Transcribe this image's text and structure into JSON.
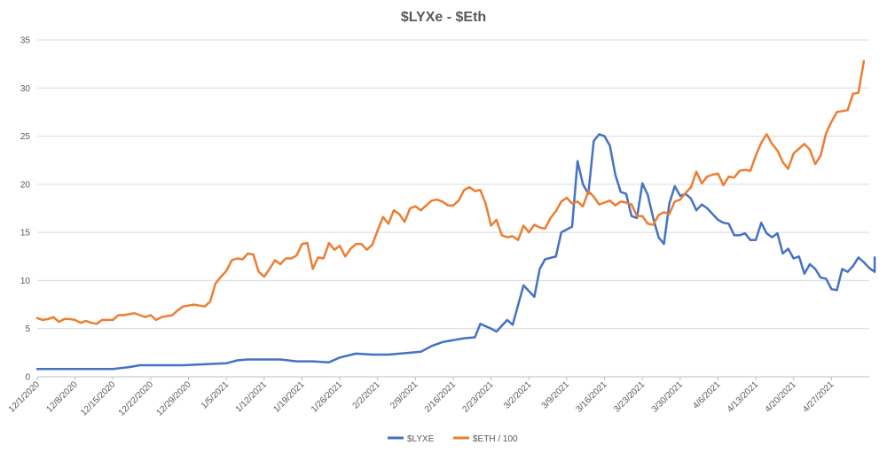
{
  "chart_data": {
    "type": "line",
    "title": "$LYXe - $Eth",
    "xlabel": "",
    "ylabel": "",
    "ylim": [
      0,
      35
    ],
    "y_ticks": [
      0,
      5,
      10,
      15,
      20,
      25,
      30,
      35
    ],
    "grid": true,
    "legend_position": "bottom",
    "x_tick_labels": [
      "12/1/2020",
      "12/8/2020",
      "12/15/2020",
      "12/22/2020",
      "12/29/2020",
      "1/5/2021",
      "1/12/2021",
      "1/19/2021",
      "1/26/2021",
      "2/2/2021",
      "2/9/2021",
      "2/16/2021",
      "2/23/2021",
      "3/2/2021",
      "3/9/2021",
      "3/16/2021",
      "3/23/2021",
      "3/30/2021",
      "4/6/2021",
      "4/13/2021",
      "4/20/2021",
      "4/27/2021"
    ],
    "x_start": "2020-12-01",
    "x_end": "2021-05-04",
    "series": [
      {
        "name": "$LYXE",
        "color": "#4472c4",
        "points": [
          [
            "2020-12-01",
            0.8
          ],
          [
            "2020-12-05",
            0.8
          ],
          [
            "2020-12-10",
            0.8
          ],
          [
            "2020-12-15",
            0.8
          ],
          [
            "2020-12-18",
            1.0
          ],
          [
            "2020-12-20",
            1.2
          ],
          [
            "2020-12-22",
            1.2
          ],
          [
            "2020-12-25",
            1.2
          ],
          [
            "2020-12-28",
            1.2
          ],
          [
            "2021-01-01",
            1.3
          ],
          [
            "2021-01-05",
            1.4
          ],
          [
            "2021-01-07",
            1.7
          ],
          [
            "2021-01-09",
            1.8
          ],
          [
            "2021-01-12",
            1.8
          ],
          [
            "2021-01-15",
            1.8
          ],
          [
            "2021-01-18",
            1.6
          ],
          [
            "2021-01-21",
            1.6
          ],
          [
            "2021-01-24",
            1.5
          ],
          [
            "2021-01-26",
            2.0
          ],
          [
            "2021-01-29",
            2.4
          ],
          [
            "2021-02-01",
            2.3
          ],
          [
            "2021-02-04",
            2.3
          ],
          [
            "2021-02-08",
            2.5
          ],
          [
            "2021-02-10",
            2.6
          ],
          [
            "2021-02-12",
            3.2
          ],
          [
            "2021-02-14",
            3.6
          ],
          [
            "2021-02-16",
            3.8
          ],
          [
            "2021-02-18",
            4.0
          ],
          [
            "2021-02-20",
            4.1
          ],
          [
            "2021-02-21",
            5.5
          ],
          [
            "2021-02-23",
            5.0
          ],
          [
            "2021-02-24",
            4.7
          ],
          [
            "2021-02-26",
            5.9
          ],
          [
            "2021-02-27",
            5.4
          ],
          [
            "2021-03-01",
            9.5
          ],
          [
            "2021-03-03",
            8.3
          ],
          [
            "2021-03-04",
            11.2
          ],
          [
            "2021-03-05",
            12.2
          ],
          [
            "2021-03-07",
            12.5
          ],
          [
            "2021-03-08",
            15.0
          ],
          [
            "2021-03-10",
            15.6
          ],
          [
            "2021-03-11",
            22.4
          ],
          [
            "2021-03-12",
            20.0
          ],
          [
            "2021-03-13",
            19.0
          ],
          [
            "2021-03-14",
            24.5
          ],
          [
            "2021-03-15",
            25.2
          ],
          [
            "2021-03-16",
            25.0
          ],
          [
            "2021-03-17",
            24.0
          ],
          [
            "2021-03-18",
            21.0
          ],
          [
            "2021-03-19",
            19.2
          ],
          [
            "2021-03-20",
            19.0
          ],
          [
            "2021-03-21",
            16.7
          ],
          [
            "2021-03-22",
            16.5
          ],
          [
            "2021-03-23",
            20.1
          ],
          [
            "2021-03-24",
            18.9
          ],
          [
            "2021-03-25",
            16.5
          ],
          [
            "2021-03-26",
            14.5
          ],
          [
            "2021-03-27",
            13.8
          ],
          [
            "2021-03-28",
            18.0
          ],
          [
            "2021-03-29",
            19.8
          ],
          [
            "2021-03-30",
            18.8
          ],
          [
            "2021-03-31",
            19.0
          ],
          [
            "2021-04-01",
            18.5
          ],
          [
            "2021-04-02",
            17.3
          ],
          [
            "2021-04-03",
            17.9
          ],
          [
            "2021-04-04",
            17.5
          ],
          [
            "2021-04-06",
            16.3
          ],
          [
            "2021-04-07",
            16.0
          ],
          [
            "2021-04-08",
            15.9
          ],
          [
            "2021-04-09",
            14.7
          ],
          [
            "2021-04-10",
            14.7
          ],
          [
            "2021-04-11",
            14.9
          ],
          [
            "2021-04-12",
            14.2
          ],
          [
            "2021-04-13",
            14.2
          ],
          [
            "2021-04-14",
            16.0
          ],
          [
            "2021-04-15",
            14.9
          ],
          [
            "2021-04-16",
            14.5
          ],
          [
            "2021-04-17",
            14.9
          ],
          [
            "2021-04-18",
            12.8
          ],
          [
            "2021-04-19",
            13.3
          ],
          [
            "2021-04-20",
            12.3
          ],
          [
            "2021-04-21",
            12.5
          ],
          [
            "2021-04-22",
            10.7
          ],
          [
            "2021-04-23",
            11.7
          ],
          [
            "2021-04-24",
            11.2
          ],
          [
            "2021-04-25",
            10.3
          ],
          [
            "2021-04-26",
            10.2
          ],
          [
            "2021-04-27",
            9.1
          ],
          [
            "2021-04-28",
            9.0
          ],
          [
            "2021-04-29",
            11.2
          ],
          [
            "2021-04-30",
            10.9
          ],
          [
            "2021-05-01",
            11.5
          ],
          [
            "2021-05-02",
            12.4
          ],
          [
            "2021-05-03",
            11.9
          ],
          [
            "2021-05-04",
            11.3
          ],
          [
            "2021-05-05",
            10.9
          ],
          [
            "2021-05-05",
            12.4
          ]
        ]
      },
      {
        "name": "$ETH / 100",
        "color": "#ed7d31",
        "points": [
          [
            "2020-12-01",
            6.1
          ],
          [
            "2020-12-02",
            5.9
          ],
          [
            "2020-12-03",
            6.0
          ],
          [
            "2020-12-04",
            6.2
          ],
          [
            "2020-12-05",
            5.7
          ],
          [
            "2020-12-06",
            6.0
          ],
          [
            "2020-12-07",
            6.0
          ],
          [
            "2020-12-08",
            5.9
          ],
          [
            "2020-12-09",
            5.6
          ],
          [
            "2020-12-10",
            5.8
          ],
          [
            "2020-12-11",
            5.6
          ],
          [
            "2020-12-12",
            5.5
          ],
          [
            "2020-12-13",
            5.9
          ],
          [
            "2020-12-14",
            5.9
          ],
          [
            "2020-12-15",
            5.9
          ],
          [
            "2020-12-16",
            6.4
          ],
          [
            "2020-12-17",
            6.4
          ],
          [
            "2020-12-18",
            6.5
          ],
          [
            "2020-12-19",
            6.6
          ],
          [
            "2020-12-20",
            6.4
          ],
          [
            "2020-12-21",
            6.2
          ],
          [
            "2020-12-22",
            6.4
          ],
          [
            "2020-12-23",
            5.9
          ],
          [
            "2020-12-24",
            6.2
          ],
          [
            "2020-12-25",
            6.3
          ],
          [
            "2020-12-26",
            6.4
          ],
          [
            "2020-12-27",
            6.9
          ],
          [
            "2020-12-28",
            7.3
          ],
          [
            "2020-12-29",
            7.4
          ],
          [
            "2020-12-30",
            7.5
          ],
          [
            "2020-12-31",
            7.4
          ],
          [
            "2021-01-01",
            7.3
          ],
          [
            "2021-01-02",
            7.8
          ],
          [
            "2021-01-03",
            9.7
          ],
          [
            "2021-01-04",
            10.4
          ],
          [
            "2021-01-05",
            11.0
          ],
          [
            "2021-01-06",
            12.1
          ],
          [
            "2021-01-07",
            12.3
          ],
          [
            "2021-01-08",
            12.2
          ],
          [
            "2021-01-09",
            12.8
          ],
          [
            "2021-01-10",
            12.7
          ],
          [
            "2021-01-11",
            10.9
          ],
          [
            "2021-01-12",
            10.4
          ],
          [
            "2021-01-13",
            11.2
          ],
          [
            "2021-01-14",
            12.1
          ],
          [
            "2021-01-15",
            11.7
          ],
          [
            "2021-01-16",
            12.3
          ],
          [
            "2021-01-17",
            12.3
          ],
          [
            "2021-01-18",
            12.6
          ],
          [
            "2021-01-19",
            13.8
          ],
          [
            "2021-01-20",
            13.9
          ],
          [
            "2021-01-21",
            11.2
          ],
          [
            "2021-01-22",
            12.4
          ],
          [
            "2021-01-23",
            12.3
          ],
          [
            "2021-01-24",
            13.9
          ],
          [
            "2021-01-25",
            13.2
          ],
          [
            "2021-01-26",
            13.6
          ],
          [
            "2021-01-27",
            12.5
          ],
          [
            "2021-01-28",
            13.3
          ],
          [
            "2021-01-29",
            13.8
          ],
          [
            "2021-01-30",
            13.8
          ],
          [
            "2021-01-31",
            13.2
          ],
          [
            "2021-02-01",
            13.7
          ],
          [
            "2021-02-02",
            15.2
          ],
          [
            "2021-02-03",
            16.6
          ],
          [
            "2021-02-04",
            15.9
          ],
          [
            "2021-02-05",
            17.3
          ],
          [
            "2021-02-06",
            16.9
          ],
          [
            "2021-02-07",
            16.1
          ],
          [
            "2021-02-08",
            17.5
          ],
          [
            "2021-02-09",
            17.7
          ],
          [
            "2021-02-10",
            17.3
          ],
          [
            "2021-02-11",
            17.8
          ],
          [
            "2021-02-12",
            18.3
          ],
          [
            "2021-02-13",
            18.4
          ],
          [
            "2021-02-14",
            18.2
          ],
          [
            "2021-02-15",
            17.8
          ],
          [
            "2021-02-16",
            17.8
          ],
          [
            "2021-02-17",
            18.3
          ],
          [
            "2021-02-18",
            19.4
          ],
          [
            "2021-02-19",
            19.7
          ],
          [
            "2021-02-20",
            19.3
          ],
          [
            "2021-02-21",
            19.4
          ],
          [
            "2021-02-22",
            18.0
          ],
          [
            "2021-02-23",
            15.7
          ],
          [
            "2021-02-24",
            16.3
          ],
          [
            "2021-02-25",
            14.7
          ],
          [
            "2021-02-26",
            14.5
          ],
          [
            "2021-02-27",
            14.6
          ],
          [
            "2021-02-28",
            14.2
          ],
          [
            "2021-03-01",
            15.7
          ],
          [
            "2021-03-02",
            15.0
          ],
          [
            "2021-03-03",
            15.8
          ],
          [
            "2021-03-04",
            15.5
          ],
          [
            "2021-03-05",
            15.4
          ],
          [
            "2021-03-06",
            16.5
          ],
          [
            "2021-03-07",
            17.2
          ],
          [
            "2021-03-08",
            18.2
          ],
          [
            "2021-03-09",
            18.6
          ],
          [
            "2021-03-10",
            18.0
          ],
          [
            "2021-03-11",
            18.2
          ],
          [
            "2021-03-12",
            17.7
          ],
          [
            "2021-03-13",
            19.3
          ],
          [
            "2021-03-14",
            18.7
          ],
          [
            "2021-03-15",
            17.9
          ],
          [
            "2021-03-16",
            18.1
          ],
          [
            "2021-03-17",
            18.3
          ],
          [
            "2021-03-18",
            17.8
          ],
          [
            "2021-03-19",
            18.2
          ],
          [
            "2021-03-20",
            18.1
          ],
          [
            "2021-03-21",
            17.9
          ],
          [
            "2021-03-22",
            16.7
          ],
          [
            "2021-03-23",
            16.7
          ],
          [
            "2021-03-24",
            15.9
          ],
          [
            "2021-03-25",
            15.8
          ],
          [
            "2021-03-26",
            16.8
          ],
          [
            "2021-03-27",
            17.1
          ],
          [
            "2021-03-28",
            16.9
          ],
          [
            "2021-03-29",
            18.2
          ],
          [
            "2021-03-30",
            18.4
          ],
          [
            "2021-03-31",
            19.1
          ],
          [
            "2021-04-01",
            19.7
          ],
          [
            "2021-04-02",
            21.3
          ],
          [
            "2021-04-03",
            20.1
          ],
          [
            "2021-04-04",
            20.8
          ],
          [
            "2021-04-05",
            21.0
          ],
          [
            "2021-04-06",
            21.1
          ],
          [
            "2021-04-07",
            19.9
          ],
          [
            "2021-04-08",
            20.8
          ],
          [
            "2021-04-09",
            20.7
          ],
          [
            "2021-04-10",
            21.4
          ],
          [
            "2021-04-11",
            21.5
          ],
          [
            "2021-04-12",
            21.4
          ],
          [
            "2021-04-13",
            23.0
          ],
          [
            "2021-04-14",
            24.3
          ],
          [
            "2021-04-15",
            25.2
          ],
          [
            "2021-04-16",
            24.2
          ],
          [
            "2021-04-17",
            23.5
          ],
          [
            "2021-04-18",
            22.3
          ],
          [
            "2021-04-19",
            21.6
          ],
          [
            "2021-04-20",
            23.2
          ],
          [
            "2021-04-21",
            23.7
          ],
          [
            "2021-04-22",
            24.2
          ],
          [
            "2021-04-23",
            23.6
          ],
          [
            "2021-04-24",
            22.1
          ],
          [
            "2021-04-25",
            23.0
          ],
          [
            "2021-04-26",
            25.3
          ],
          [
            "2021-04-27",
            26.5
          ],
          [
            "2021-04-28",
            27.5
          ],
          [
            "2021-04-29",
            27.6
          ],
          [
            "2021-04-30",
            27.7
          ],
          [
            "2021-05-01",
            29.4
          ],
          [
            "2021-05-02",
            29.5
          ],
          [
            "2021-05-03",
            32.8
          ]
        ]
      }
    ]
  }
}
